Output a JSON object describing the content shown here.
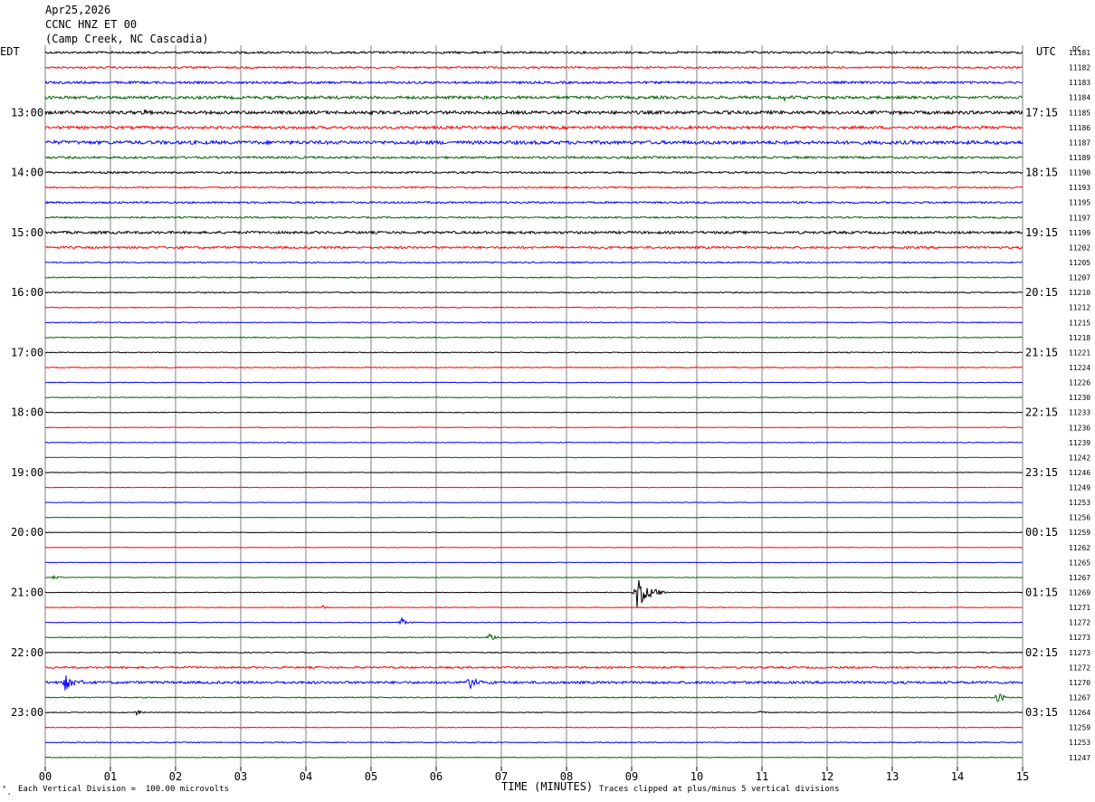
{
  "header": {
    "date": "Apr25,2026",
    "station": "CCNC HNZ ET 00",
    "location": "(Camp Creek, NC Cascadia)"
  },
  "footer": {
    "mark": "˚¸",
    "scale_note": "Each Vertical Division =  100.00 microvolts",
    "clip_note": "Traces clipped at plus/minus 5 vertical divisions"
  },
  "chart_data": {
    "type": "line",
    "subtype": "helicorder",
    "title": "",
    "xlabel": "TIME (MINUTES)",
    "left_axis_title": "EDT",
    "right_axis_title": "UTC",
    "dc_header": "DC",
    "xlim": [
      0,
      15
    ],
    "x_ticks": [
      "00",
      "01",
      "02",
      "03",
      "04",
      "05",
      "06",
      "07",
      "08",
      "09",
      "10",
      "11",
      "12",
      "13",
      "14",
      "15"
    ],
    "grid": true,
    "colors": [
      "#000000",
      "#ff0000",
      "#0000ff",
      "#006400"
    ],
    "left_time_labels": [
      {
        "row": 4,
        "label": "13:00"
      },
      {
        "row": 8,
        "label": "14:00"
      },
      {
        "row": 12,
        "label": "15:00"
      },
      {
        "row": 16,
        "label": "16:00"
      },
      {
        "row": 20,
        "label": "17:00"
      },
      {
        "row": 24,
        "label": "18:00"
      },
      {
        "row": 28,
        "label": "19:00"
      },
      {
        "row": 32,
        "label": "20:00"
      },
      {
        "row": 36,
        "label": "21:00"
      },
      {
        "row": 40,
        "label": "22:00"
      },
      {
        "row": 44,
        "label": "23:00"
      }
    ],
    "right_time_labels": [
      {
        "row": 4,
        "label": "17:15"
      },
      {
        "row": 8,
        "label": "18:15"
      },
      {
        "row": 12,
        "label": "19:15"
      },
      {
        "row": 16,
        "label": "20:15"
      },
      {
        "row": 20,
        "label": "21:15"
      },
      {
        "row": 24,
        "label": "22:15"
      },
      {
        "row": 28,
        "label": "23:15"
      },
      {
        "row": 32,
        "label": "00:15"
      },
      {
        "row": 36,
        "label": "01:15"
      },
      {
        "row": 40,
        "label": "02:15"
      },
      {
        "row": 44,
        "label": "03:15"
      }
    ],
    "dc_offsets": [
      "11181",
      "11182",
      "11183",
      "11184",
      "11185",
      "11186",
      "11187",
      "11189",
      "11190",
      "11193",
      "11195",
      "11197",
      "11199",
      "11202",
      "11205",
      "11207",
      "11210",
      "11212",
      "11215",
      "11218",
      "11221",
      "11224",
      "11226",
      "11230",
      "11233",
      "11236",
      "11239",
      "11242",
      "11246",
      "11249",
      "11253",
      "11256",
      "11259",
      "11262",
      "11265",
      "11267",
      "11269",
      "11271",
      "11272",
      "11273",
      "11273",
      "11272",
      "11270",
      "11267",
      "11264",
      "11259",
      "11253",
      "11247"
    ],
    "trace_noise": [
      1.2,
      1.0,
      1.3,
      1.6,
      1.8,
      1.5,
      1.9,
      1.2,
      1.0,
      0.8,
      1.0,
      0.9,
      1.4,
      1.2,
      0.7,
      0.6,
      0.6,
      0.5,
      0.5,
      0.5,
      0.5,
      0.5,
      0.4,
      0.4,
      0.4,
      0.4,
      0.4,
      0.3,
      0.3,
      0.3,
      0.3,
      0.3,
      0.3,
      0.3,
      0.3,
      0.3,
      0.4,
      0.4,
      0.4,
      0.5,
      0.5,
      1.0,
      1.4,
      0.6,
      0.4,
      0.4,
      0.5,
      0.4
    ],
    "events": [
      {
        "row": 3,
        "minute": 11.3,
        "amplitude": 4,
        "duration": 0.3
      },
      {
        "row": 4,
        "minute": 1.5,
        "amplitude": 3,
        "duration": 0.3
      },
      {
        "row": 35,
        "minute": 0.1,
        "amplitude": 3,
        "duration": 0.3
      },
      {
        "row": 36,
        "minute": 9.05,
        "amplitude": 20,
        "duration": 0.5
      },
      {
        "row": 37,
        "minute": 4.25,
        "amplitude": 3,
        "duration": 0.15
      },
      {
        "row": 38,
        "minute": 5.45,
        "amplitude": 6,
        "duration": 0.25
      },
      {
        "row": 39,
        "minute": 6.8,
        "amplitude": 5,
        "duration": 0.3
      },
      {
        "row": 42,
        "minute": 0.3,
        "amplitude": 10,
        "duration": 0.35
      },
      {
        "row": 42,
        "minute": 6.5,
        "amplitude": 9,
        "duration": 0.4
      },
      {
        "row": 43,
        "minute": 14.6,
        "amplitude": 10,
        "duration": 0.2
      },
      {
        "row": 44,
        "minute": 1.4,
        "amplitude": 4,
        "duration": 0.2
      },
      {
        "row": 44,
        "minute": 10.95,
        "amplitude": 3,
        "duration": 0.2
      }
    ]
  }
}
